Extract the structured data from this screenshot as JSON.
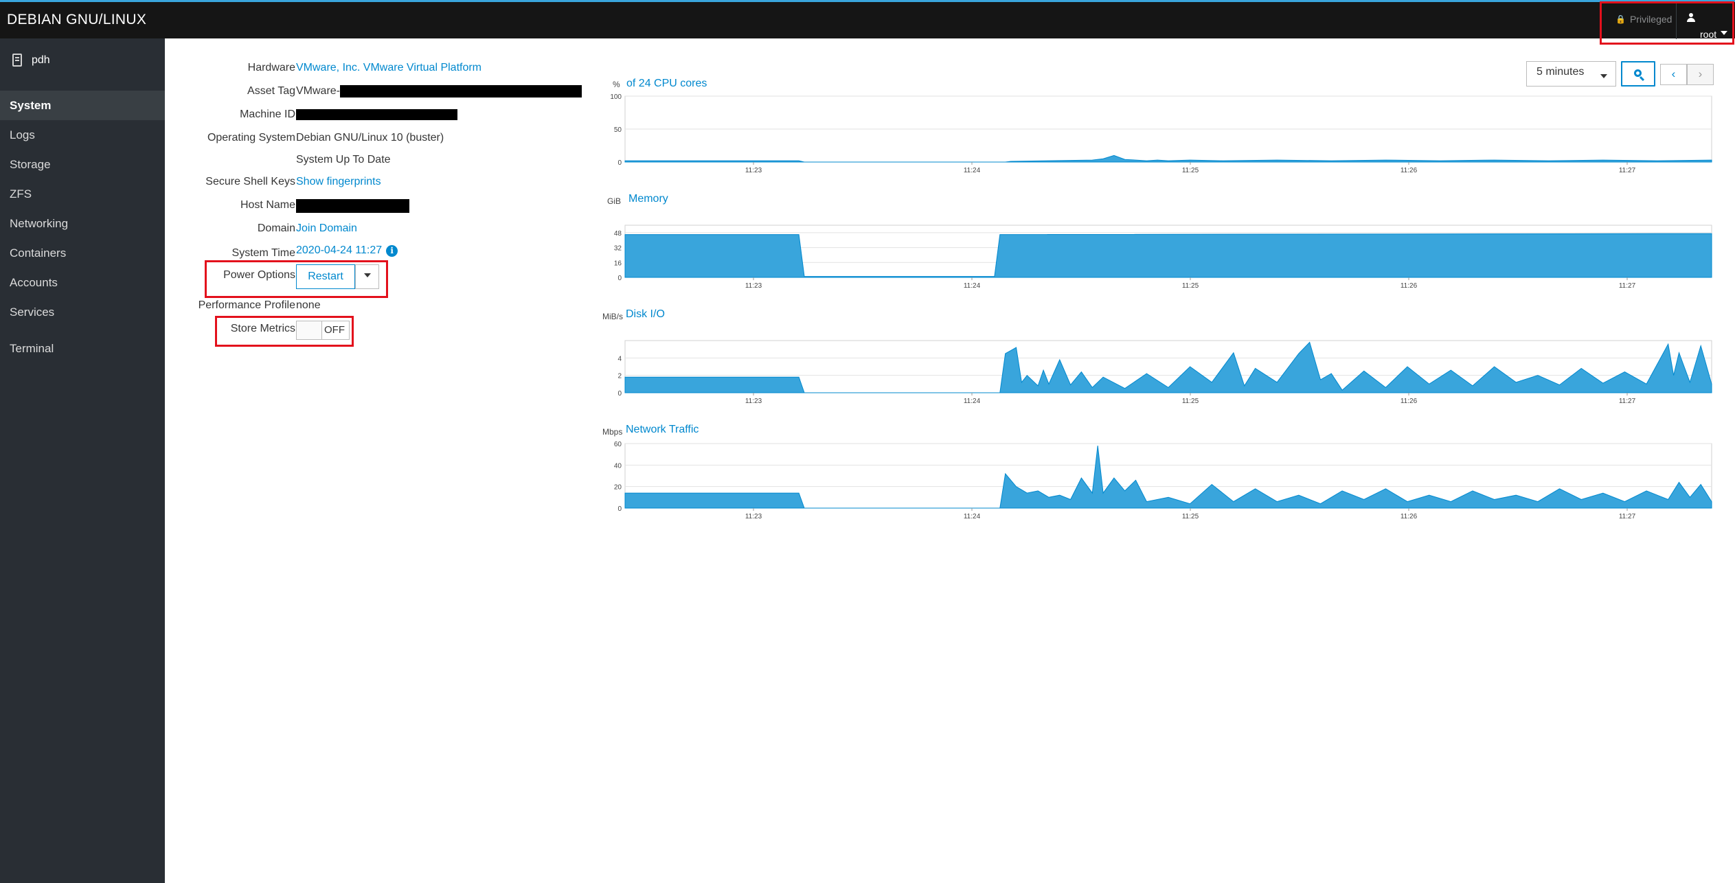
{
  "topbar": {
    "brand": "DEBIAN GNU/LINUX",
    "privileged_label": "Privileged",
    "user_label": "root"
  },
  "sidebar": {
    "host": "pdh",
    "items": [
      {
        "label": "System",
        "active": true
      },
      {
        "label": "Logs"
      },
      {
        "label": "Storage"
      },
      {
        "label": "ZFS"
      },
      {
        "label": "Networking"
      },
      {
        "label": "Containers"
      },
      {
        "label": "Accounts"
      },
      {
        "label": "Services"
      },
      {
        "label": "Terminal"
      }
    ]
  },
  "system": {
    "hardware_label": "Hardware",
    "hardware_value": "VMware, Inc. VMware Virtual Platform",
    "asset_tag_label": "Asset Tag",
    "asset_tag_value": "VMware-",
    "machine_id_label": "Machine ID",
    "os_label": "Operating System",
    "os_value": "Debian GNU/Linux 10 (buster)",
    "updates_value": "System Up To Date",
    "ssh_label": "Secure Shell Keys",
    "ssh_value": "Show fingerprints",
    "hostname_label": "Host Name",
    "domain_label": "Domain",
    "domain_value": "Join Domain",
    "time_label": "System Time",
    "time_value": "2020-04-24 11:27",
    "power_label": "Power Options",
    "power_button": "Restart",
    "profile_label": "Performance Profile",
    "profile_value": "none",
    "metrics_label": "Store Metrics",
    "metrics_state": "OFF"
  },
  "graph_controls": {
    "range": "5 minutes",
    "prev": "‹",
    "next": "›"
  },
  "colors": {
    "accent": "#0088ce",
    "chart_fill": "#39a5dc",
    "topbar": "#151515",
    "sidebar": "#292e34",
    "highlight": "#e3101c"
  },
  "chart_data": [
    {
      "type": "area",
      "title": "of 24 CPU cores",
      "unit": "%",
      "yticks": [
        0,
        50,
        100
      ],
      "ylim": [
        0,
        100
      ],
      "xticks": [
        "11:23",
        "11:24",
        "11:25",
        "11:26",
        "11:27"
      ],
      "x": [
        0,
        0.16,
        0.165,
        0.35,
        0.355,
        0.43,
        0.44,
        0.45,
        0.46,
        0.47,
        0.48,
        0.49,
        0.5,
        0.52,
        0.55,
        0.6,
        0.65,
        0.7,
        0.75,
        0.8,
        0.85,
        0.9,
        0.95,
        1.0
      ],
      "values": [
        2,
        2,
        0,
        0,
        1,
        3,
        5,
        10,
        4,
        3,
        2,
        3,
        2,
        3,
        2,
        3,
        2,
        3,
        2,
        3,
        2,
        3,
        2,
        3
      ]
    },
    {
      "type": "area",
      "title": "Memory",
      "unit": "GiB",
      "yticks": [
        0,
        16,
        32,
        48
      ],
      "ylim": [
        0,
        56
      ],
      "xticks": [
        "11:23",
        "11:24",
        "11:25",
        "11:26",
        "11:27"
      ],
      "x": [
        0,
        0.16,
        0.165,
        0.34,
        0.345,
        1.0
      ],
      "values": [
        46,
        46,
        1,
        1,
        46,
        47
      ]
    },
    {
      "type": "area",
      "title": "Disk I/O",
      "unit": "MiB/s",
      "yticks": [
        0,
        2,
        4
      ],
      "ylim": [
        0,
        6
      ],
      "xticks": [
        "11:23",
        "11:24",
        "11:25",
        "11:26",
        "11:27"
      ],
      "x": [
        0,
        0.16,
        0.165,
        0.345,
        0.35,
        0.36,
        0.365,
        0.37,
        0.38,
        0.385,
        0.39,
        0.4,
        0.41,
        0.42,
        0.43,
        0.44,
        0.46,
        0.48,
        0.5,
        0.52,
        0.54,
        0.56,
        0.57,
        0.58,
        0.6,
        0.62,
        0.63,
        0.64,
        0.65,
        0.66,
        0.68,
        0.7,
        0.72,
        0.74,
        0.76,
        0.78,
        0.8,
        0.82,
        0.84,
        0.86,
        0.88,
        0.9,
        0.92,
        0.94,
        0.96,
        0.965,
        0.97,
        0.98,
        0.99,
        1.0
      ],
      "values": [
        1.8,
        1.8,
        0,
        0,
        4.5,
        5.2,
        1.2,
        2.0,
        0.8,
        2.6,
        1.0,
        3.8,
        0.9,
        2.4,
        0.6,
        1.8,
        0.5,
        2.2,
        0.6,
        3.0,
        1.2,
        4.6,
        0.8,
        2.8,
        1.2,
        4.5,
        5.8,
        1.5,
        2.2,
        0.3,
        2.5,
        0.6,
        3.0,
        1.0,
        2.6,
        0.8,
        3.0,
        1.2,
        2.0,
        0.9,
        2.8,
        1.1,
        2.4,
        1.0,
        5.6,
        2.0,
        4.6,
        1.2,
        5.4,
        1.0
      ]
    },
    {
      "type": "area",
      "title": "Network Traffic",
      "unit": "Mbps",
      "yticks": [
        0,
        20,
        40,
        60
      ],
      "ylim": [
        0,
        60
      ],
      "xticks": [
        "11:23",
        "11:24",
        "11:25",
        "11:26",
        "11:27"
      ],
      "x": [
        0,
        0.16,
        0.165,
        0.345,
        0.35,
        0.36,
        0.37,
        0.38,
        0.39,
        0.4,
        0.41,
        0.42,
        0.43,
        0.435,
        0.44,
        0.45,
        0.46,
        0.47,
        0.48,
        0.5,
        0.52,
        0.54,
        0.56,
        0.58,
        0.6,
        0.62,
        0.64,
        0.66,
        0.68,
        0.7,
        0.72,
        0.74,
        0.76,
        0.78,
        0.8,
        0.82,
        0.84,
        0.86,
        0.88,
        0.9,
        0.92,
        0.94,
        0.96,
        0.97,
        0.98,
        0.99,
        1.0
      ],
      "values": [
        14,
        14,
        0,
        0,
        32,
        20,
        14,
        16,
        10,
        12,
        8,
        28,
        14,
        58,
        14,
        28,
        16,
        26,
        6,
        10,
        4,
        22,
        6,
        18,
        6,
        12,
        4,
        16,
        8,
        18,
        6,
        12,
        6,
        16,
        8,
        12,
        6,
        18,
        8,
        14,
        6,
        16,
        8,
        24,
        10,
        22,
        6
      ]
    }
  ]
}
